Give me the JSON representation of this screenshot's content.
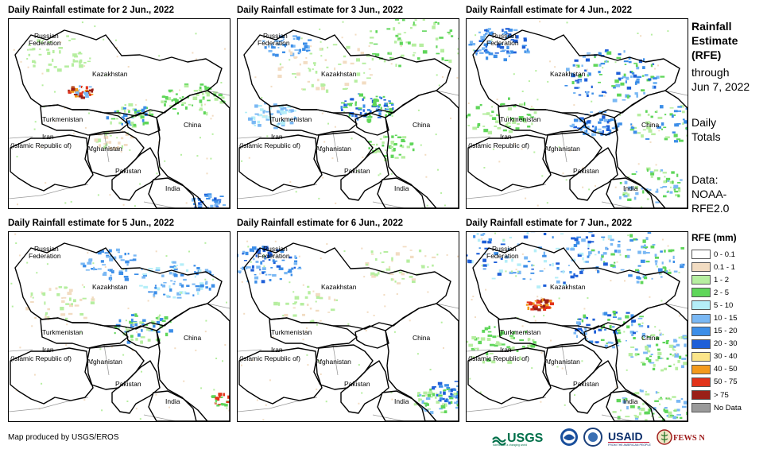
{
  "panels": [
    {
      "title": "Daily Rainfall estimate for 2 Jun., 2022"
    },
    {
      "title": "Daily Rainfall estimate for 3 Jun., 2022"
    },
    {
      "title": "Daily Rainfall estimate for 4 Jun., 2022"
    },
    {
      "title": "Daily Rainfall estimate for 5 Jun., 2022"
    },
    {
      "title": "Daily Rainfall estimate for 6 Jun., 2022"
    },
    {
      "title": "Daily Rainfall estimate for 7 Jun., 2022"
    }
  ],
  "map_labels": {
    "russia_1": "Russian",
    "russia_2": "Federation",
    "kazakhstan": "Kazakhstan",
    "turkmenistan": "Turkmenistan",
    "iran_1": "Iran",
    "iran_2": "(Islamic Republic of)",
    "afghanistan": "Afghanistan",
    "pakistan": "Pakistan",
    "china": "China",
    "india": "India"
  },
  "sidebar": {
    "heading_1": "Rainfall",
    "heading_2": "Estimate",
    "heading_3": "(RFE)",
    "through_1": "through",
    "through_2": "Jun 7, 2022",
    "totals_1": "Daily",
    "totals_2": "Totals",
    "data_1": "Data:",
    "data_2": "NOAA-",
    "data_3": "RFE2.0"
  },
  "legend": {
    "title": "RFE (mm)",
    "items": [
      {
        "label": "0 - 0.1",
        "color": "#ffffff"
      },
      {
        "label": "0.1 - 1",
        "color": "#f2dcc2"
      },
      {
        "label": "1 - 2",
        "color": "#b6eea0"
      },
      {
        "label": "2 - 5",
        "color": "#5fd65a"
      },
      {
        "label": "5 - 10",
        "color": "#b4eef8"
      },
      {
        "label": "10 - 15",
        "color": "#7ab8f4"
      },
      {
        "label": "15 - 20",
        "color": "#3c8ee8"
      },
      {
        "label": "20 - 30",
        "color": "#1e5fd8"
      },
      {
        "label": "30 - 40",
        "color": "#fbe58a"
      },
      {
        "label": "40 - 50",
        "color": "#f39a1c"
      },
      {
        "label": "50 - 75",
        "color": "#e2331a"
      },
      {
        "label": "> 75",
        "color": "#9a1f17"
      },
      {
        "label": "No Data",
        "color": "#9a9a9a"
      }
    ]
  },
  "footer": {
    "credit": "Map produced by USGS/EROS"
  },
  "logos": {
    "usgs": "USGS",
    "usgs_tagline": "science for a changing world",
    "usaid": "USAID",
    "usaid_tagline": "FROM THE AMERICAN PEOPLE",
    "fewsnet": "FEWS NET"
  }
}
